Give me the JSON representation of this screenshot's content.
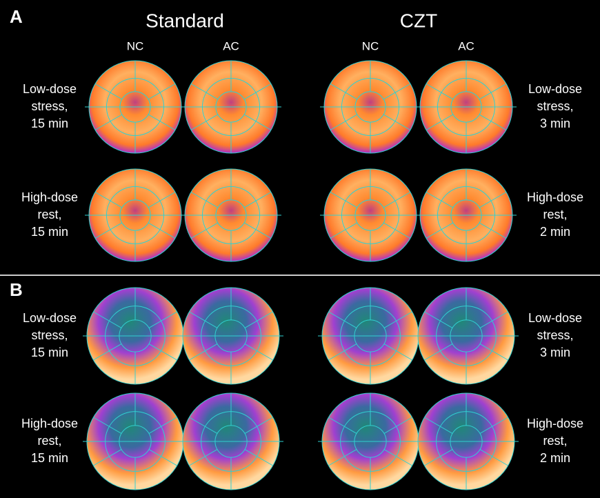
{
  "panel_a": {
    "label": "A",
    "group_titles": [
      "Standard",
      "CZT"
    ],
    "column_labels": [
      "NC",
      "AC",
      "NC",
      "AC"
    ],
    "left_rows": [
      [
        "Low-dose",
        "stress,",
        "15 min"
      ],
      [
        "High-dose",
        "rest,",
        "15 min"
      ]
    ],
    "right_rows": [
      [
        "Low-dose",
        "stress,",
        "3 min"
      ],
      [
        "High-dose",
        "rest,",
        "2 min"
      ]
    ]
  },
  "panel_b": {
    "label": "B",
    "left_rows": [
      [
        "Low-dose",
        "stress,",
        "15 min"
      ],
      [
        "High-dose",
        "rest,",
        "15 min"
      ]
    ],
    "right_rows": [
      [
        "Low-dose",
        "stress,",
        "3 min"
      ],
      [
        "High-dose",
        "rest,",
        "2 min"
      ]
    ]
  }
}
